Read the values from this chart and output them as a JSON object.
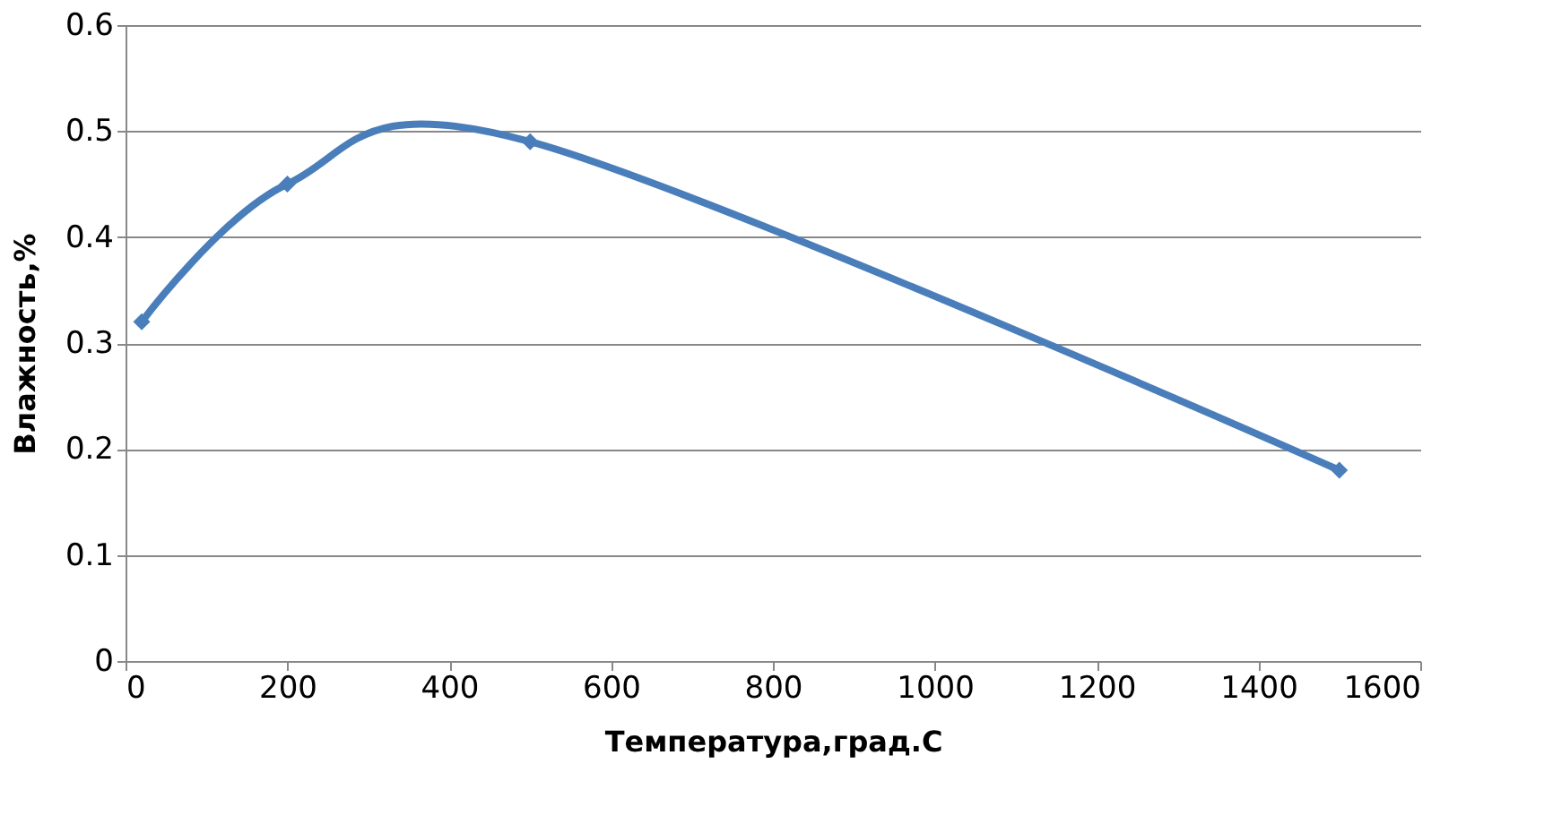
{
  "chart_data": {
    "type": "line",
    "xlabel": "Температура,град.С",
    "ylabel": "Влажность,%",
    "x": [
      20,
      200,
      500,
      1500
    ],
    "series": [
      {
        "color": "#4a7ebb",
        "values": [
          0.32,
          0.45,
          0.49,
          0.18
        ]
      }
    ],
    "xlim": [
      0,
      1600
    ],
    "xticks": [
      0,
      200,
      400,
      600,
      800,
      1000,
      1200,
      1400,
      1600
    ],
    "ylim": [
      0,
      0.6
    ],
    "yticks": [
      0,
      0.1,
      0.2,
      0.3,
      0.4,
      0.5,
      0.6
    ],
    "grid": "y",
    "marker": "diamond",
    "line_style": "solid"
  }
}
